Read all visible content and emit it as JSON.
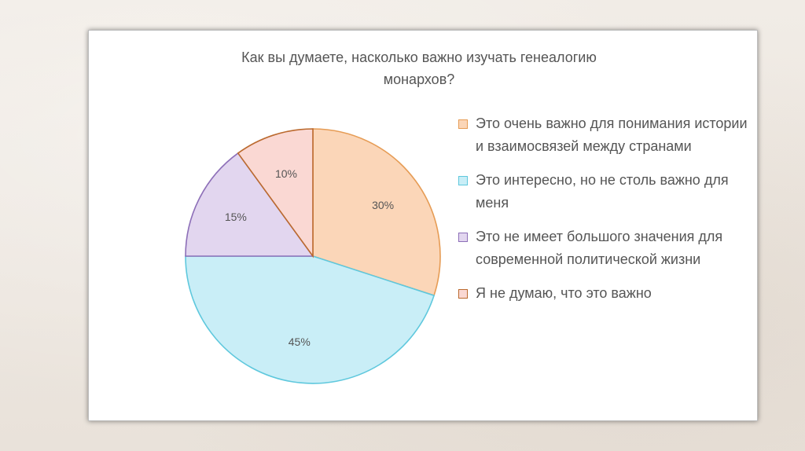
{
  "chart_data": {
    "type": "pie",
    "title_lines": [
      "Как вы думаете, насколько важно изучать генеалогию",
      "монархов?"
    ],
    "slices": [
      {
        "label": "Это очень важно для понимания истории и взаимосвязей между странами",
        "value": 30,
        "value_label": "30%",
        "fill": "#fbd6b8",
        "stroke": "#e69c55"
      },
      {
        "label": "Это интересно, но не столь важно для меня",
        "value": 45,
        "value_label": "45%",
        "fill": "#c9eef7",
        "stroke": "#5fc8dd"
      },
      {
        "label": "Это не имеет большого значения для современной политической жизни",
        "value": 15,
        "value_label": "15%",
        "fill": "#e2d6ef",
        "stroke": "#8d6fb8"
      },
      {
        "label": "Я не думаю, что это важно",
        "value": 10,
        "value_label": "10%",
        "fill": "#fad8d3",
        "stroke": "#bb6a2f"
      }
    ],
    "legend_position": "right"
  }
}
